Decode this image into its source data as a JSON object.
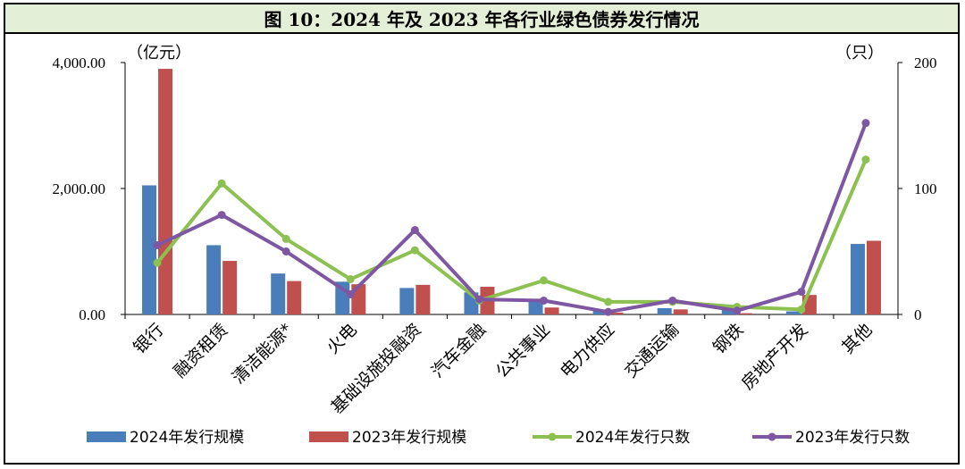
{
  "title": "图 10：2024 年及 2023 年各行业绿色债券发行情况",
  "chart_data": {
    "type": "bar+line",
    "title": "图 10：2024 年及 2023 年各行业绿色债券发行情况",
    "left_unit": "（亿元）",
    "right_unit": "（只）",
    "categories": [
      "银行",
      "融资租赁",
      "清洁能源*",
      "火电",
      "基础设施投融资",
      "汽车金融",
      "公共事业",
      "电力供应",
      "交通运输",
      "钢铁",
      "房地产开发",
      "其他"
    ],
    "left_axis": {
      "min": 0,
      "max": 4000,
      "ticks": [
        0,
        2000,
        4000
      ],
      "tick_labels": [
        "0.00",
        "2,000.00",
        "4,000.00"
      ]
    },
    "right_axis": {
      "min": 0,
      "max": 200,
      "ticks": [
        0,
        100,
        200
      ],
      "tick_labels": [
        "0",
        "100",
        "200"
      ]
    },
    "bar_series": [
      {
        "name": "2024年发行规模",
        "color": "#4a7ebb",
        "values": [
          2050,
          1100,
          650,
          520,
          420,
          350,
          220,
          60,
          100,
          90,
          50,
          1120
        ]
      },
      {
        "name": "2023年发行规模",
        "color": "#c0504d",
        "values": [
          3900,
          850,
          530,
          480,
          470,
          440,
          110,
          30,
          80,
          20,
          310,
          1170
        ]
      }
    ],
    "line_series": [
      {
        "name": "2024年发行只数",
        "color": "#8cc152",
        "values": [
          41,
          104,
          60,
          28,
          51,
          11,
          27,
          10,
          10,
          6,
          4,
          123
        ]
      },
      {
        "name": "2023年发行只数",
        "color": "#7e57a3",
        "values": [
          55,
          79,
          50,
          16,
          67,
          12,
          11,
          2,
          11,
          3,
          18,
          152
        ]
      }
    ],
    "legend": [
      "2024年发行规模",
      "2023年发行规模",
      "2024年发行只数",
      "2023年发行只数"
    ],
    "legend_position": "bottom",
    "grid": false
  }
}
